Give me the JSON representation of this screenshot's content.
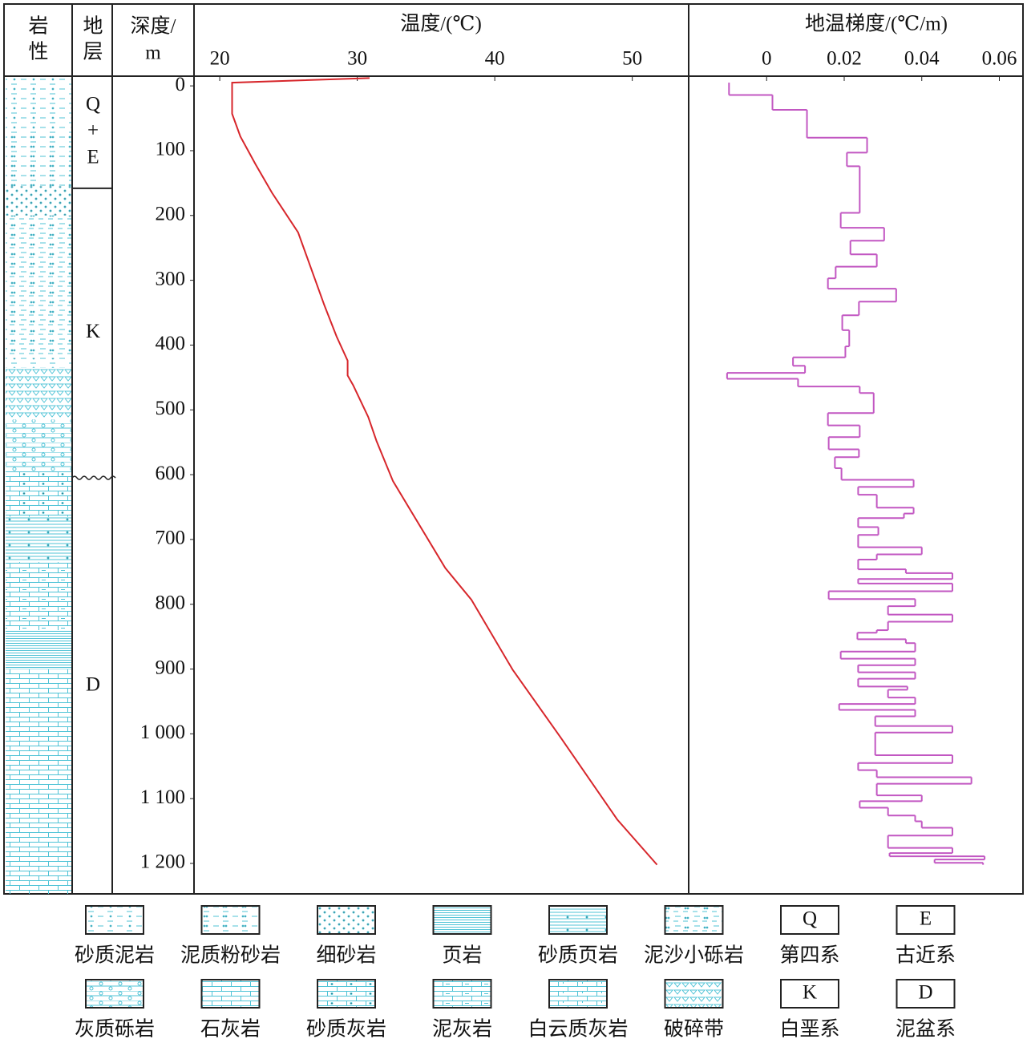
{
  "columns": {
    "lithology": [
      "岩",
      "性"
    ],
    "strata": [
      "地",
      "层"
    ]
  },
  "chart_data": [
    {
      "type": "line",
      "title": "温度/(℃)",
      "y_title": [
        "深度/",
        "m"
      ],
      "xlim": [
        18.13,
        54.1
      ],
      "xticks": [
        20,
        30,
        40,
        50
      ],
      "ylim": [
        -15,
        1247
      ],
      "yticks": [
        0,
        100,
        200,
        300,
        400,
        500,
        600,
        700,
        800,
        900,
        {
          "value": 1000,
          "label": "1 000"
        },
        {
          "value": 1100,
          "label": "1 100"
        },
        {
          "value": 1200,
          "label": "1 200"
        }
      ],
      "series": [
        {
          "color": "#d7262b",
          "depths": [
            -12,
            -5,
            4,
            43,
            78,
            121,
            165,
            226,
            338,
            387,
            424,
            447,
            462,
            511,
            548,
            610,
            744,
            793,
            901,
            1006,
            1132,
            1202
          ],
          "values": [
            30.9,
            20.9,
            20.9,
            20.9,
            21.5,
            22.6,
            23.8,
            25.7,
            27.6,
            28.5,
            29.3,
            29.3,
            29.7,
            30.8,
            31.4,
            32.6,
            36.4,
            38.3,
            41.3,
            44.8,
            48.9,
            51.8
          ]
        }
      ]
    },
    {
      "type": "step",
      "title": "地温梯度/(℃/m)",
      "xlim": [
        -0.0201,
        0.0661
      ],
      "xticks": [
        0,
        0.02,
        0.04,
        0.06
      ],
      "ylim": [
        -15,
        1247
      ],
      "series": [
        {
          "color": "#c257c2",
          "depths": [
            -5,
            14,
            37,
            80,
            103,
            124,
            196,
            219,
            239,
            260,
            279,
            297,
            313,
            333,
            354,
            377,
            402,
            419,
            432,
            443,
            452,
            464,
            474,
            505,
            524,
            542,
            561,
            573,
            590,
            608,
            619,
            631,
            651,
            660,
            667,
            681,
            693,
            712,
            723,
            731,
            746,
            752,
            761,
            768,
            780,
            792,
            803,
            816,
            827,
            840,
            844,
            854,
            860,
            873,
            884,
            894,
            905,
            915,
            927,
            932,
            944,
            954,
            963,
            973,
            988,
            998,
            1033,
            1045,
            1056,
            1067,
            1077,
            1095,
            1104,
            1114,
            1126,
            1135,
            1145,
            1157,
            1176,
            1184,
            1189,
            1194,
            1199,
            1202
          ],
          "values": [
            -0.0097,
            0.0015,
            0.0104,
            0.0259,
            0.0207,
            0.024,
            0.0191,
            0.0303,
            0.0216,
            0.0284,
            0.0178,
            0.0158,
            0.0334,
            0.0238,
            0.0195,
            0.0213,
            0.0203,
            0.0068,
            0.0099,
            -0.0102,
            0.0081,
            0.024,
            0.0276,
            0.0158,
            0.024,
            0.016,
            0.0238,
            0.0176,
            0.0193,
            0.0379,
            0.0236,
            0.0284,
            0.0379,
            0.0354,
            0.0236,
            0.0288,
            0.0236,
            0.04,
            0.0284,
            0.0236,
            0.0359,
            0.0479,
            0.0236,
            0.0479,
            0.016,
            0.0383,
            0.0313,
            0.0479,
            0.0313,
            0.0284,
            0.0234,
            0.0359,
            0.0383,
            0.0191,
            0.0383,
            0.0236,
            0.0383,
            0.0236,
            0.0363,
            0.0313,
            0.0383,
            0.0187,
            0.0383,
            0.028,
            0.0479,
            0.028,
            0.0479,
            0.0236,
            0.0284,
            0.0528,
            0.0284,
            0.04,
            0.024,
            0.0313,
            0.0383,
            0.04,
            0.0479,
            0.0313,
            0.0479,
            0.0317,
            0.0562,
            0.0433,
            0.0558
          ]
        }
      ]
    }
  ],
  "strata": [
    {
      "label": [
        "Q",
        "+",
        "E"
      ],
      "top": -15,
      "bottom": 158
    },
    {
      "label": [
        "K"
      ],
      "top": 158,
      "bottom": 605,
      "unconformity": true
    },
    {
      "label": [
        "D"
      ],
      "top": 605,
      "bottom": 1247
    }
  ],
  "lithology": [
    {
      "rock": "砂质泥岩",
      "top": -15,
      "bottom": 75
    },
    {
      "rock": "泥质粉砂岩",
      "top": 75,
      "bottom": 155
    },
    {
      "rock": "细砂岩",
      "top": 155,
      "bottom": 200
    },
    {
      "rock": "泥沙小砾岩",
      "top": 200,
      "bottom": 420
    },
    {
      "rock": "砂质泥岩",
      "top": 420,
      "bottom": 435
    },
    {
      "rock": "破碎带",
      "top": 435,
      "bottom": 515
    },
    {
      "rock": "灰质砾岩",
      "top": 515,
      "bottom": 595
    },
    {
      "rock": "砂质灰岩",
      "top": 595,
      "bottom": 665
    },
    {
      "rock": "砂质页岩",
      "top": 665,
      "bottom": 735
    },
    {
      "rock": "泥灰岩",
      "top": 735,
      "bottom": 840
    },
    {
      "rock": "页岩",
      "top": 840,
      "bottom": 900
    },
    {
      "rock": "石灰岩",
      "top": 900,
      "bottom": 1247
    }
  ],
  "legend": [
    {
      "label": "砂质泥岩"
    },
    {
      "label": "泥质粉砂岩"
    },
    {
      "label": "细砂岩"
    },
    {
      "label": "页岩"
    },
    {
      "label": "砂质页岩"
    },
    {
      "label": "泥沙小砾岩"
    },
    {
      "label": "第四系",
      "symbol": "Q"
    },
    {
      "label": "古近系",
      "symbol": "E"
    },
    {
      "label": "灰质砾岩"
    },
    {
      "label": "石灰岩"
    },
    {
      "label": "砂质灰岩"
    },
    {
      "label": "泥灰岩"
    },
    {
      "label": "白云质灰岩"
    },
    {
      "label": "破碎带"
    },
    {
      "label": "白垩系",
      "symbol": "K"
    },
    {
      "label": "泥盆系",
      "symbol": "D"
    }
  ]
}
